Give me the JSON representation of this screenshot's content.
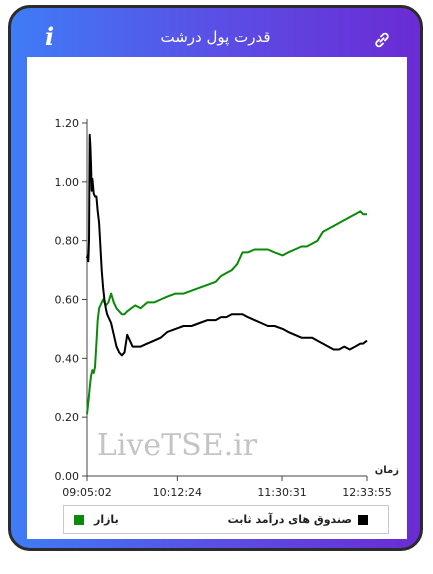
{
  "header": {
    "title": "قدرت پول درشت",
    "info_icon": "info-icon",
    "link_icon": "link-icon"
  },
  "watermark": "LiveTSE.ir",
  "colors": {
    "market": "#0a8a0a",
    "fund": "#000000",
    "gradient_start": "#3f7cf6",
    "gradient_end": "#6a2bd3"
  },
  "chart_data": {
    "type": "line",
    "title": "",
    "xlabel": "زمان",
    "ylabel": "",
    "ylim": [
      0,
      1.2
    ],
    "y_ticks": [
      "0.00",
      "0.20",
      "0.40",
      "0.60",
      "0.80",
      "1.00",
      "1.20"
    ],
    "x_tick_labels": [
      "09:05:02",
      "10:12:24",
      "11:30:31",
      "12:33:55"
    ],
    "x_tick_minutes": [
      0,
      67.4,
      145.5,
      208.9
    ],
    "xlim": [
      0,
      208.9
    ],
    "grid": false,
    "legend_position": "bottom",
    "series": [
      {
        "name": "بازار",
        "color": "#0a8a0a",
        "x": [
          0,
          1,
          2,
          3,
          4,
          5,
          6,
          7,
          8,
          9,
          10,
          12,
          14,
          16,
          18,
          20,
          22,
          24,
          26,
          28,
          30,
          33,
          36,
          40,
          45,
          50,
          55,
          60,
          66,
          72,
          78,
          84,
          90,
          96,
          100,
          104,
          108,
          112,
          116,
          120,
          125,
          130,
          135,
          140,
          146,
          150,
          155,
          160,
          164,
          168,
          172,
          176,
          180,
          184,
          188,
          192,
          196,
          200,
          204,
          206,
          208.9
        ],
        "y": [
          0.21,
          0.25,
          0.3,
          0.34,
          0.36,
          0.35,
          0.37,
          0.45,
          0.53,
          0.57,
          0.58,
          0.6,
          0.58,
          0.59,
          0.62,
          0.59,
          0.57,
          0.56,
          0.55,
          0.55,
          0.56,
          0.57,
          0.58,
          0.57,
          0.59,
          0.59,
          0.6,
          0.61,
          0.62,
          0.62,
          0.63,
          0.64,
          0.65,
          0.66,
          0.68,
          0.69,
          0.7,
          0.72,
          0.76,
          0.76,
          0.77,
          0.77,
          0.77,
          0.76,
          0.75,
          0.76,
          0.77,
          0.78,
          0.78,
          0.79,
          0.8,
          0.83,
          0.84,
          0.85,
          0.86,
          0.87,
          0.88,
          0.89,
          0.9,
          0.89,
          0.89
        ]
      },
      {
        "name": "صندوق های درآمد ثابت",
        "color": "#000000",
        "x": [
          0,
          0.5,
          1,
          1.5,
          2,
          2.5,
          3,
          3.5,
          4,
          5,
          6,
          7,
          8,
          9,
          10,
          11,
          12,
          13,
          14,
          15,
          16,
          18,
          20,
          22,
          24,
          26,
          28,
          30,
          32,
          34,
          36,
          40,
          45,
          50,
          55,
          60,
          66,
          72,
          78,
          84,
          90,
          96,
          100,
          104,
          108,
          112,
          116,
          120,
          125,
          130,
          135,
          140,
          146,
          150,
          155,
          160,
          164,
          168,
          172,
          176,
          180,
          184,
          188,
          192,
          196,
          200,
          204,
          206,
          208.9
        ],
        "y": [
          0.74,
          0.75,
          0.73,
          0.8,
          1.16,
          1.12,
          1.06,
          0.97,
          1.01,
          0.96,
          0.95,
          0.95,
          0.9,
          0.86,
          0.78,
          0.7,
          0.64,
          0.6,
          0.57,
          0.55,
          0.54,
          0.52,
          0.48,
          0.44,
          0.42,
          0.41,
          0.42,
          0.48,
          0.46,
          0.44,
          0.44,
          0.44,
          0.45,
          0.46,
          0.47,
          0.49,
          0.5,
          0.51,
          0.51,
          0.52,
          0.53,
          0.53,
          0.54,
          0.54,
          0.55,
          0.55,
          0.55,
          0.54,
          0.53,
          0.52,
          0.51,
          0.51,
          0.5,
          0.49,
          0.48,
          0.47,
          0.47,
          0.47,
          0.46,
          0.45,
          0.44,
          0.43,
          0.43,
          0.44,
          0.43,
          0.44,
          0.45,
          0.45,
          0.46
        ]
      }
    ]
  }
}
